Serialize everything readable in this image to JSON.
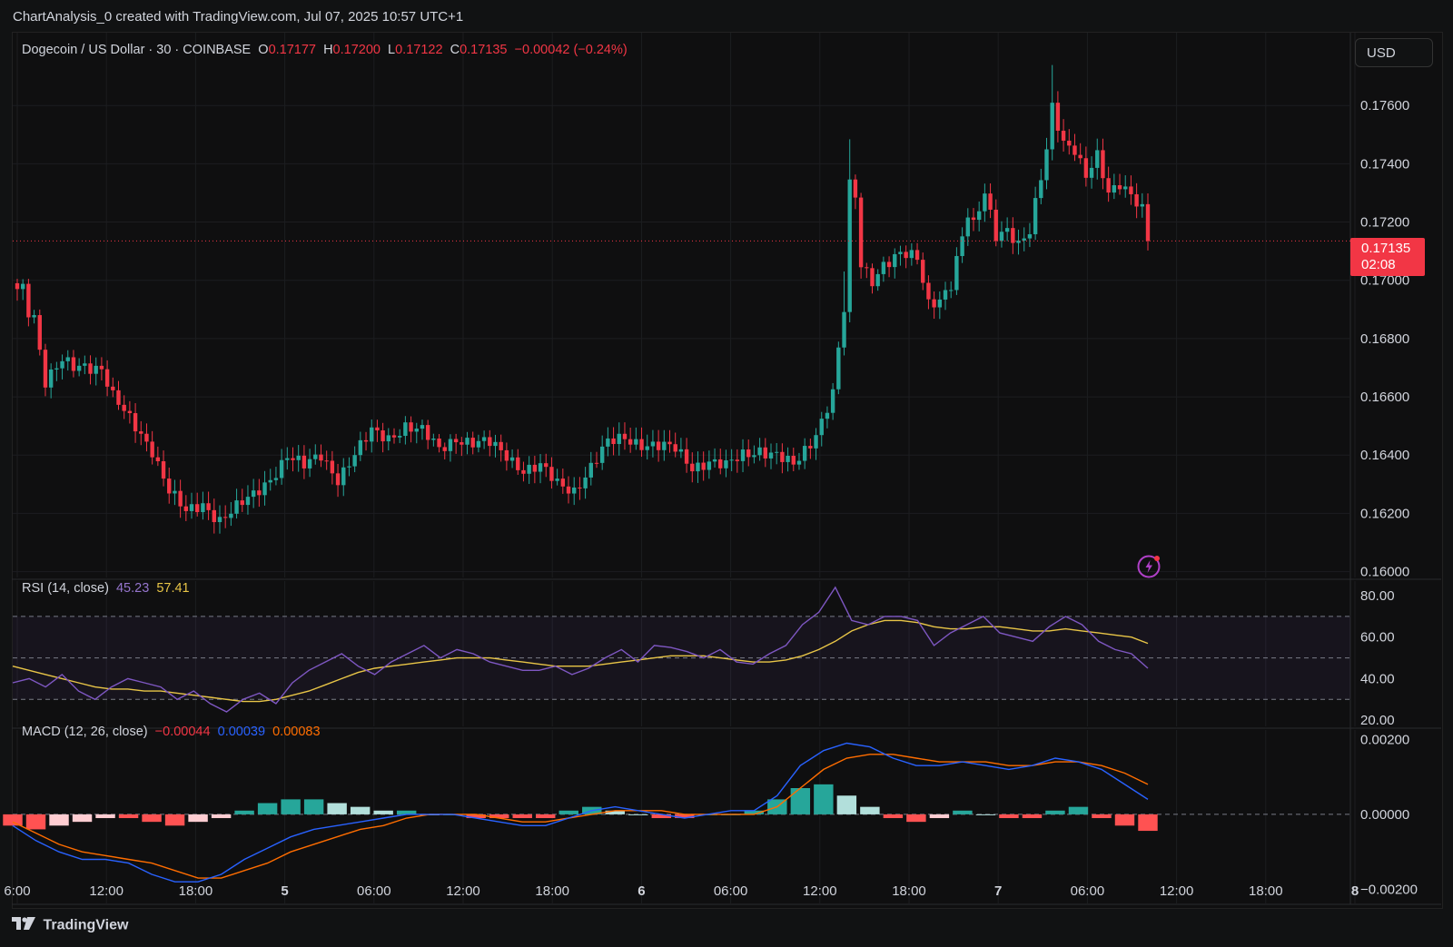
{
  "header": {
    "title": "ChartAnalysis_0 created with TradingView.com, Jul 07, 2025 10:57 UTC+1"
  },
  "footer": {
    "brand": "TradingView"
  },
  "price_panel": {
    "symbol": "Dogecoin / US Dollar · 30 · COINBASE",
    "o_label": "O",
    "o_value": "0.17177",
    "h_label": "H",
    "h_value": "0.17200",
    "l_label": "L",
    "l_value": "0.17122",
    "c_label": "C",
    "c_value": "0.17135",
    "change": "−0.00042 (−0.24%)",
    "currency_button": "USD",
    "last_price_label": "0.17135",
    "countdown": "02:08"
  },
  "rsi_panel": {
    "label": "RSI (14, close)",
    "rsi_value": "45.23",
    "ma_value": "57.41"
  },
  "macd_panel": {
    "label": "MACD (12, 26, close)",
    "hist_value": "−0.00044",
    "macd_value": "0.00039",
    "signal_value": "0.00083"
  },
  "colors": {
    "up": "#26a69a",
    "down": "#f23645",
    "rsi": "#7e57c2",
    "rsi_ma": "#e8c547",
    "macd": "#2962ff",
    "signal": "#ff6d00"
  },
  "icons": {
    "alert": "lightning-bolt-icon",
    "logo": "tradingview-logo-icon"
  },
  "chart_data": [
    {
      "type": "candlestick",
      "interval": "30m",
      "y_ticks": [
        "0.17600",
        "0.17400",
        "0.17200",
        "0.17000",
        "0.16800",
        "0.16600",
        "0.16400",
        "0.16200",
        "0.16000"
      ],
      "ylim": [
        0.1598,
        0.1785
      ],
      "x_ticks": [
        "6:00",
        "12:00",
        "18:00",
        "5",
        "06:00",
        "12:00",
        "18:00",
        "6",
        "06:00",
        "12:00",
        "18:00",
        "7",
        "06:00",
        "12:00",
        "18:00",
        "8"
      ],
      "last_price": 0.17135,
      "anchors": [
        [
          0,
          0.1697
        ],
        [
          1,
          0.1698
        ],
        [
          2,
          0.169
        ],
        [
          3,
          0.1688
        ],
        [
          5,
          0.1665
        ],
        [
          8,
          0.1672
        ],
        [
          10,
          0.167
        ],
        [
          12,
          0.1671
        ],
        [
          15,
          0.167
        ],
        [
          17,
          0.166
        ],
        [
          20,
          0.1652
        ],
        [
          24,
          0.1642
        ],
        [
          27,
          0.1628
        ],
        [
          30,
          0.162
        ],
        [
          33,
          0.1623
        ],
        [
          36,
          0.1618
        ],
        [
          39,
          0.1622
        ],
        [
          42,
          0.1626
        ],
        [
          45,
          0.1632
        ],
        [
          48,
          0.164
        ],
        [
          51,
          0.1636
        ],
        [
          54,
          0.164
        ],
        [
          57,
          0.1632
        ],
        [
          60,
          0.164
        ],
        [
          63,
          0.1648
        ],
        [
          66,
          0.1646
        ],
        [
          69,
          0.165
        ],
        [
          72,
          0.1648
        ],
        [
          75,
          0.1642
        ],
        [
          78,
          0.1646
        ],
        [
          81,
          0.1644
        ],
        [
          84,
          0.1644
        ],
        [
          87,
          0.164
        ],
        [
          90,
          0.1635
        ],
        [
          93,
          0.1636
        ],
        [
          96,
          0.163
        ],
        [
          99,
          0.1628
        ],
        [
          102,
          0.1636
        ],
        [
          105,
          0.1644
        ],
        [
          108,
          0.1646
        ],
        [
          111,
          0.1644
        ],
        [
          114,
          0.1643
        ],
        [
          117,
          0.1642
        ],
        [
          120,
          0.1636
        ],
        [
          123,
          0.1638
        ],
        [
          126,
          0.1636
        ],
        [
          129,
          0.164
        ],
        [
          132,
          0.1642
        ],
        [
          135,
          0.164
        ],
        [
          138,
          0.1636
        ],
        [
          141,
          0.1644
        ],
        [
          143,
          0.1652
        ],
        [
          145,
          0.1662
        ],
        [
          147,
          0.169
        ],
        [
          148,
          0.1732
        ],
        [
          149,
          0.1728
        ],
        [
          150,
          0.1705
        ],
        [
          152,
          0.17
        ],
        [
          154,
          0.1706
        ],
        [
          157,
          0.1709
        ],
        [
          160,
          0.1707
        ],
        [
          162,
          0.1692
        ],
        [
          164,
          0.1694
        ],
        [
          166,
          0.1699
        ],
        [
          167,
          0.1707
        ],
        [
          169,
          0.1722
        ],
        [
          170,
          0.1718
        ],
        [
          172,
          0.173
        ],
        [
          174,
          0.1716
        ],
        [
          176,
          0.1718
        ],
        [
          178,
          0.1712
        ],
        [
          180,
          0.1716
        ],
        [
          182,
          0.1735
        ],
        [
          183,
          0.1745
        ],
        [
          184,
          0.176
        ],
        [
          186,
          0.1748
        ],
        [
          188,
          0.1745
        ],
        [
          190,
          0.1735
        ],
        [
          192,
          0.1742
        ],
        [
          194,
          0.173
        ],
        [
          196,
          0.1734
        ],
        [
          198,
          0.173
        ],
        [
          200,
          0.1724
        ],
        [
          201,
          0.1714
        ]
      ]
    },
    {
      "type": "line",
      "name": "RSI (14, close)",
      "y_ticks": [
        "80.00",
        "60.00",
        "40.00",
        "20.00"
      ],
      "ylim": [
        17,
        87
      ],
      "bands": [
        70,
        50,
        30
      ],
      "series": [
        {
          "name": "RSI",
          "values": [
            38,
            40,
            36,
            42,
            34,
            30,
            36,
            40,
            38,
            36,
            30,
            34,
            28,
            24,
            30,
            33,
            28,
            38,
            44,
            48,
            52,
            46,
            42,
            48,
            52,
            56,
            50,
            54,
            52,
            48,
            46,
            44,
            44,
            46,
            42,
            45,
            50,
            54,
            48,
            56,
            55,
            53,
            50,
            54,
            48,
            47,
            52,
            56,
            66,
            72,
            84,
            68,
            66,
            70,
            70,
            68,
            56,
            62,
            66,
            70,
            62,
            60,
            58,
            65,
            70,
            66,
            58,
            54,
            52,
            45
          ]
        },
        {
          "name": "MA",
          "values": [
            46,
            44,
            42,
            40,
            38,
            36,
            35,
            35,
            34,
            34,
            33,
            32,
            31,
            30,
            29,
            29,
            30,
            32,
            34,
            37,
            40,
            43,
            45,
            46,
            47,
            48,
            49,
            50,
            50,
            50,
            49,
            48,
            47,
            46,
            46,
            46,
            47,
            48,
            49,
            50,
            51,
            51,
            51,
            50,
            49,
            48,
            48,
            49,
            51,
            54,
            58,
            63,
            66,
            68,
            68,
            67,
            65,
            64,
            64,
            65,
            65,
            64,
            63,
            63,
            64,
            63,
            62,
            61,
            60,
            57
          ]
        }
      ]
    },
    {
      "type": "bar+line",
      "name": "MACD (12, 26, close)",
      "y_ticks": [
        "0.00200",
        "0.00000",
        "−0.00200"
      ],
      "ylim": [
        -0.0024,
        0.00225
      ],
      "series": [
        {
          "name": "MACD",
          "values": [
            -0.0003,
            -0.0007,
            -0.001,
            -0.0012,
            -0.0012,
            -0.0013,
            -0.0016,
            -0.0018,
            -0.0018,
            -0.0016,
            -0.0012,
            -0.0009,
            -0.0006,
            -0.0004,
            -0.0003,
            -0.0002,
            -0.0001,
            0.0,
            0.0,
            0.0,
            -0.0001,
            -0.0002,
            -0.0003,
            -0.0003,
            -0.0001,
            0.0001,
            0.0002,
            0.0001,
            0.0,
            -0.0001,
            0.0,
            0.0001,
            0.0001,
            0.0005,
            0.0013,
            0.0017,
            0.0019,
            0.0018,
            0.0015,
            0.0013,
            0.0013,
            0.0014,
            0.0013,
            0.0012,
            0.0013,
            0.0015,
            0.0014,
            0.0012,
            0.0008,
            0.0004
          ]
        },
        {
          "name": "Signal",
          "values": [
            -0.0002,
            -0.0005,
            -0.0008,
            -0.001,
            -0.0011,
            -0.0012,
            -0.0013,
            -0.0015,
            -0.0017,
            -0.0017,
            -0.0015,
            -0.0013,
            -0.001,
            -0.0008,
            -0.0006,
            -0.0004,
            -0.0003,
            -0.0001,
            0.0,
            0.0,
            0.0,
            -0.0001,
            -0.0002,
            -0.0002,
            -0.0001,
            0.0,
            0.0001,
            0.0001,
            0.0001,
            0.0,
            0.0,
            0.0,
            0.0,
            0.0002,
            0.0007,
            0.0012,
            0.0015,
            0.0016,
            0.0016,
            0.0015,
            0.0014,
            0.0014,
            0.0014,
            0.0013,
            0.0013,
            0.0014,
            0.0014,
            0.0013,
            0.0011,
            0.0008
          ]
        },
        {
          "name": "Histogram",
          "values": [
            -0.0003,
            -0.0004,
            -0.0003,
            -0.0002,
            -0.0001,
            -0.0001,
            -0.0002,
            -0.0003,
            -0.0002,
            -0.0001,
            0.0001,
            0.0003,
            0.0004,
            0.0004,
            0.0003,
            0.0002,
            0.0001,
            0.0001,
            0.0,
            0.0,
            -0.0001,
            -0.0001,
            -0.0001,
            -0.0001,
            0.0001,
            0.0002,
            0.0001,
            0.0,
            -0.0001,
            -0.0001,
            0.0,
            0.0,
            0.0001,
            0.0004,
            0.0007,
            0.0008,
            0.0005,
            0.0002,
            -0.0001,
            -0.0002,
            -0.0001,
            0.0001,
            0.0,
            -0.0001,
            -0.0001,
            0.0001,
            0.0002,
            -0.0001,
            -0.0003,
            -0.00044
          ]
        }
      ]
    }
  ]
}
